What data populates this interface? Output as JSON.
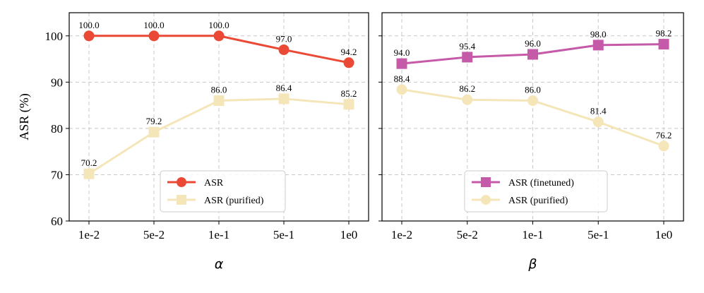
{
  "chart_data": [
    {
      "type": "line",
      "categories": [
        "1e-2",
        "5e-2",
        "1e-1",
        "5e-1",
        "1e0"
      ],
      "xlabel": "α",
      "ylabel": "ASR (%)",
      "ylim": [
        60,
        105
      ],
      "yticks": [
        60,
        70,
        80,
        90,
        100
      ],
      "grid": true,
      "legend_position": "lower-center",
      "series": [
        {
          "name": "ASR",
          "values": [
            100.0,
            100.0,
            100.0,
            97.0,
            94.2
          ],
          "labels": [
            "100.0",
            "100.0",
            "100.0",
            "97.0",
            "94.2"
          ],
          "color": "#ea4a35",
          "marker": "circle"
        },
        {
          "name": "ASR (purified)",
          "values": [
            70.2,
            79.2,
            86.0,
            86.4,
            85.2
          ],
          "labels": [
            "70.2",
            "79.2",
            "86.0",
            "86.4",
            "85.2"
          ],
          "color": "#f4e6b8",
          "marker": "square"
        }
      ]
    },
    {
      "type": "line",
      "categories": [
        "1e-2",
        "5e-2",
        "1e-1",
        "5e-1",
        "1e0"
      ],
      "xlabel": "β",
      "ylabel": "",
      "ylim": [
        60,
        105
      ],
      "yticks": [
        60,
        70,
        80,
        90,
        100
      ],
      "grid": true,
      "legend_position": "lower-center",
      "series": [
        {
          "name": "ASR (finetuned)",
          "values": [
            94.0,
            95.4,
            96.0,
            98.0,
            98.2
          ],
          "labels": [
            "94.0",
            "95.4",
            "96.0",
            "98.0",
            "98.2"
          ],
          "color": "#c45aa8",
          "marker": "square"
        },
        {
          "name": "ASR (purified)",
          "values": [
            88.4,
            86.2,
            86.0,
            81.4,
            76.2
          ],
          "labels": [
            "88.4",
            "86.2",
            "86.0",
            "81.4",
            "76.2"
          ],
          "color": "#f4e6b8",
          "marker": "circle"
        }
      ]
    }
  ]
}
